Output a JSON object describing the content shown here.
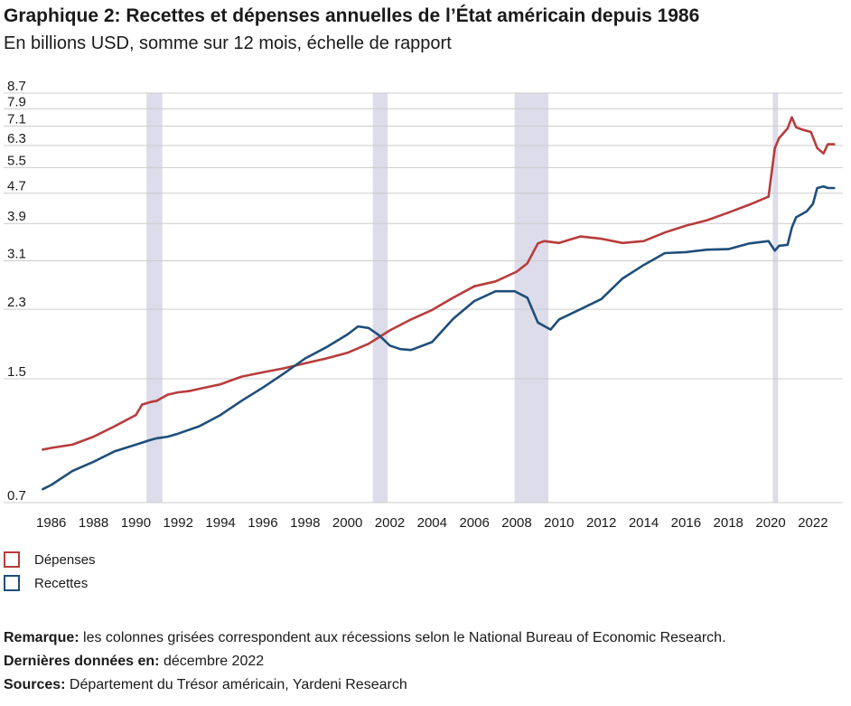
{
  "header": {
    "title": "Graphique 2: Recettes et dépenses annuelles de l’État américain depuis 1986",
    "subtitle": "En billions USD, somme sur 12 mois, échelle de rapport"
  },
  "colors": {
    "expenses": "#b83c3c",
    "receipts": "#1f4e79",
    "recession": "#dcdcea",
    "grid": "#cccccc"
  },
  "legend": {
    "expenses": "Dépenses",
    "receipts": "Recettes"
  },
  "notes": {
    "remark_label": "Remarque:",
    "remark_text": " les colonnes grisées correspondent aux récessions selon le National Bureau of Economic Research.",
    "latest_label": "Dernières données en:",
    "latest_text": " décembre 2022",
    "sources_label": "Sources:",
    "sources_text": " Département du Trésor américain, Yardeni Research"
  },
  "chart_data": {
    "type": "line",
    "y_scale": "log",
    "ylim": [
      0.7,
      8.7
    ],
    "xlim": [
      1985.5,
      2023.2
    ],
    "y_ticks": [
      "0.7",
      "1.5",
      "2.3",
      "3.1",
      "3.9",
      "4.7",
      "5.5",
      "6.3",
      "7.1",
      "7.9",
      "8.7"
    ],
    "x_ticks": [
      "1986",
      "1988",
      "1990",
      "1992",
      "1994",
      "1996",
      "1998",
      "2000",
      "2002",
      "2004",
      "2006",
      "2008",
      "2010",
      "2012",
      "2014",
      "2016",
      "2018",
      "2020",
      "2022"
    ],
    "grid": true,
    "recessions": [
      [
        1990.5,
        1991.25
      ],
      [
        2001.2,
        2001.9
      ],
      [
        2007.9,
        2009.5
      ],
      [
        2020.1,
        2020.35
      ]
    ],
    "series": [
      {
        "name": "Dépenses",
        "x": [
          1985.6,
          1986,
          1987,
          1988,
          1989,
          1990,
          1990.3,
          1990.7,
          1991,
          1991.5,
          1992,
          1992.5,
          1993,
          1994,
          1995,
          1996,
          1997,
          1998,
          1999,
          2000,
          2001,
          2002,
          2003,
          2004,
          2005,
          2006,
          2007,
          2008,
          2008.5,
          2009,
          2009.3,
          2010,
          2011,
          2012,
          2013,
          2014,
          2015,
          2016,
          2017,
          2018,
          2019,
          2019.9,
          2020.2,
          2020.4,
          2020.8,
          2021,
          2021.2,
          2021.5,
          2021.9,
          2022.2,
          2022.5,
          2022.7,
          2022.9,
          2023.0
        ],
        "y": [
          0.97,
          0.98,
          1.0,
          1.05,
          1.12,
          1.2,
          1.28,
          1.3,
          1.31,
          1.36,
          1.38,
          1.39,
          1.41,
          1.45,
          1.52,
          1.56,
          1.6,
          1.65,
          1.7,
          1.76,
          1.86,
          2.02,
          2.16,
          2.29,
          2.47,
          2.65,
          2.73,
          2.9,
          3.05,
          3.45,
          3.5,
          3.46,
          3.6,
          3.55,
          3.46,
          3.5,
          3.69,
          3.85,
          3.98,
          4.17,
          4.38,
          4.6,
          6.2,
          6.6,
          7.0,
          7.5,
          7.05,
          6.95,
          6.85,
          6.2,
          6.0,
          6.35,
          6.35,
          6.35
        ]
      },
      {
        "name": "Recettes",
        "x": [
          1985.6,
          1986,
          1987,
          1988,
          1989,
          1990,
          1990.7,
          1991,
          1991.5,
          1992,
          1993,
          1994,
          1995,
          1996,
          1997,
          1998,
          1999,
          2000,
          2000.5,
          2001,
          2001.5,
          2002,
          2002.5,
          2003,
          2004,
          2005,
          2006,
          2007,
          2007.9,
          2008.5,
          2009,
          2009.6,
          2010,
          2011,
          2012,
          2013,
          2014,
          2015,
          2016,
          2017,
          2018,
          2019,
          2019.9,
          2020.2,
          2020.4,
          2020.8,
          2021,
          2021.2,
          2021.7,
          2022,
          2022.2,
          2022.5,
          2022.7,
          2023.0
        ],
        "y": [
          0.76,
          0.78,
          0.85,
          0.9,
          0.96,
          1.0,
          1.03,
          1.04,
          1.05,
          1.07,
          1.12,
          1.2,
          1.31,
          1.42,
          1.55,
          1.7,
          1.82,
          1.97,
          2.07,
          2.05,
          1.96,
          1.84,
          1.8,
          1.79,
          1.88,
          2.17,
          2.42,
          2.57,
          2.57,
          2.47,
          2.12,
          2.03,
          2.16,
          2.3,
          2.45,
          2.78,
          3.02,
          3.25,
          3.27,
          3.32,
          3.33,
          3.45,
          3.5,
          3.3,
          3.4,
          3.42,
          3.8,
          4.05,
          4.2,
          4.4,
          4.85,
          4.9,
          4.85,
          4.85
        ]
      }
    ]
  }
}
